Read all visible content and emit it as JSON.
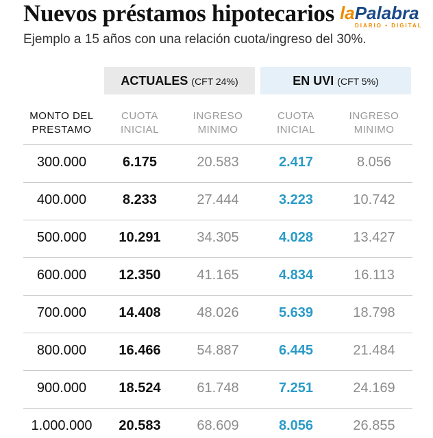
{
  "title": "Nuevos préstamos hipotecarios",
  "subtitle": "Ejemplo a 15 años con una relación cuota/ingreso del 30%.",
  "logo": {
    "part1": "la",
    "part2": "Palabra",
    "tagline": "DIARIO • DIGITAL"
  },
  "groups": {
    "actuales": {
      "label": "ACTUALES",
      "note": "(CFT 24%)"
    },
    "uvi": {
      "label": "EN UVI",
      "note": "(CFT 5%)"
    }
  },
  "headers": {
    "monto": [
      "MONTO DEL",
      "PRESTAMO"
    ],
    "cuota_actual": [
      "CUOTA",
      "INICIAL"
    ],
    "ingreso_actual": [
      "INGRESO",
      "MINIMO"
    ],
    "cuota_uvi": [
      "CUOTA",
      "INICIAL"
    ],
    "ingreso_uvi": [
      "INGRESO",
      "MINIMO"
    ]
  },
  "colors": {
    "accent_uvi": "#2a9ac7",
    "grey_text": "#8c8c8c",
    "actuales_bg": "#e9e9e9",
    "uvi_bg": "#e6f0f8"
  },
  "chart_data": {
    "type": "table",
    "columns": [
      "MONTO DEL PRESTAMO",
      "ACTUALES CUOTA INICIAL",
      "ACTUALES INGRESO MINIMO",
      "EN UVI CUOTA INICIAL",
      "EN UVI INGRESO MINIMO"
    ],
    "rows": [
      [
        "300.000",
        "6.175",
        "20.583",
        "2.417",
        "8.056"
      ],
      [
        "400.000",
        "8.233",
        "27.444",
        "3.223",
        "10.742"
      ],
      [
        "500.000",
        "10.291",
        "34.305",
        "4.028",
        "13.427"
      ],
      [
        "600.000",
        "12.350",
        "41.165",
        "4.834",
        "16.113"
      ],
      [
        "700.000",
        "14.408",
        "48.026",
        "5.639",
        "18.798"
      ],
      [
        "800.000",
        "16.466",
        "54.887",
        "6.445",
        "21.484"
      ],
      [
        "900.000",
        "18.524",
        "61.748",
        "7.251",
        "24.169"
      ],
      [
        "1.000.000",
        "20.583",
        "68.609",
        "8.056",
        "26.855"
      ]
    ]
  }
}
